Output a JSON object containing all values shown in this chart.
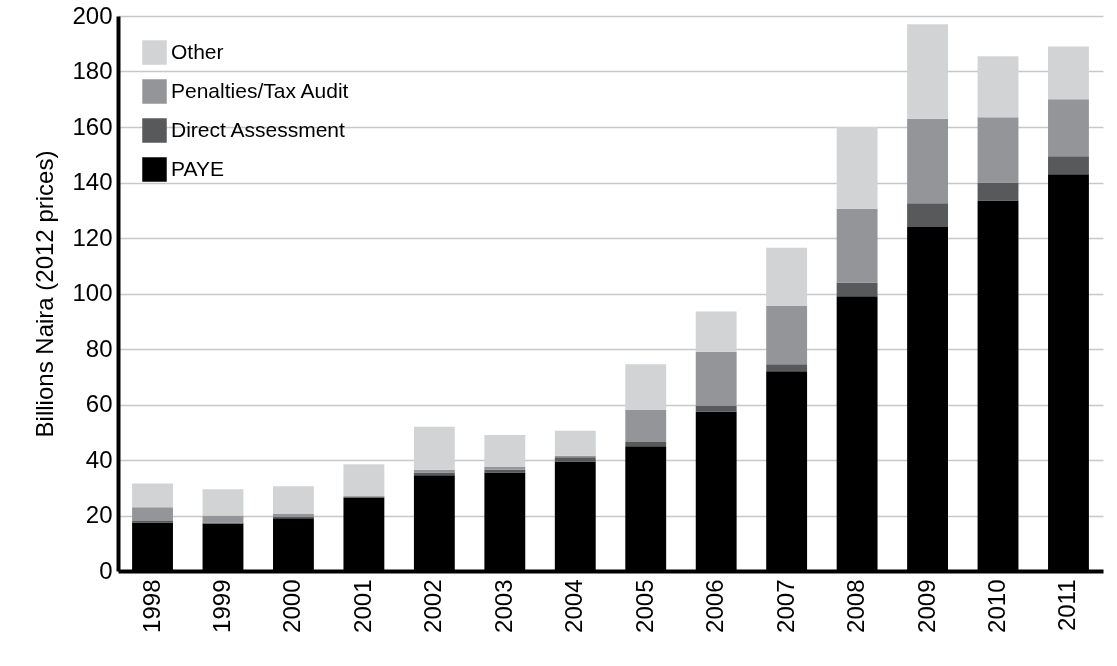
{
  "chart_data": {
    "type": "bar",
    "stacked": true,
    "ylabel": "Billions Naira (2012 prices)",
    "categories": [
      "1998",
      "1999",
      "2000",
      "2001",
      "2002",
      "2003",
      "2004",
      "2005",
      "2006",
      "2007",
      "2008",
      "2009",
      "2010",
      "2011"
    ],
    "series": [
      {
        "name": "PAYE",
        "color": "#000000",
        "values": [
          17.5,
          17,
          19,
          26.5,
          34.5,
          35.5,
          39.5,
          45,
          57.5,
          72,
          99,
          124,
          133.5,
          143
        ]
      },
      {
        "name": "Direct Assessment",
        "color": "#58595b",
        "values": [
          0.5,
          0.5,
          0.5,
          0.3,
          1,
          1,
          1.5,
          1.5,
          2,
          2.5,
          5,
          8.5,
          6.5,
          6.5
        ]
      },
      {
        "name": "Penalties/Tax Audit",
        "color": "#939598",
        "values": [
          5,
          2.5,
          1,
          0.2,
          1,
          1,
          0.5,
          11.5,
          19.5,
          21,
          26.5,
          30.5,
          23.5,
          20.5
        ]
      },
      {
        "name": "Other",
        "color": "#d1d3d4",
        "values": [
          8.5,
          9.5,
          10,
          11.5,
          15.5,
          11.5,
          9,
          16.5,
          14.5,
          21,
          29.5,
          34,
          22,
          19
        ]
      }
    ],
    "ylim": [
      0,
      200
    ],
    "yticks": [
      0,
      20,
      40,
      60,
      80,
      100,
      120,
      140,
      160,
      180,
      200
    ],
    "grid": "y",
    "legend": "top left"
  }
}
